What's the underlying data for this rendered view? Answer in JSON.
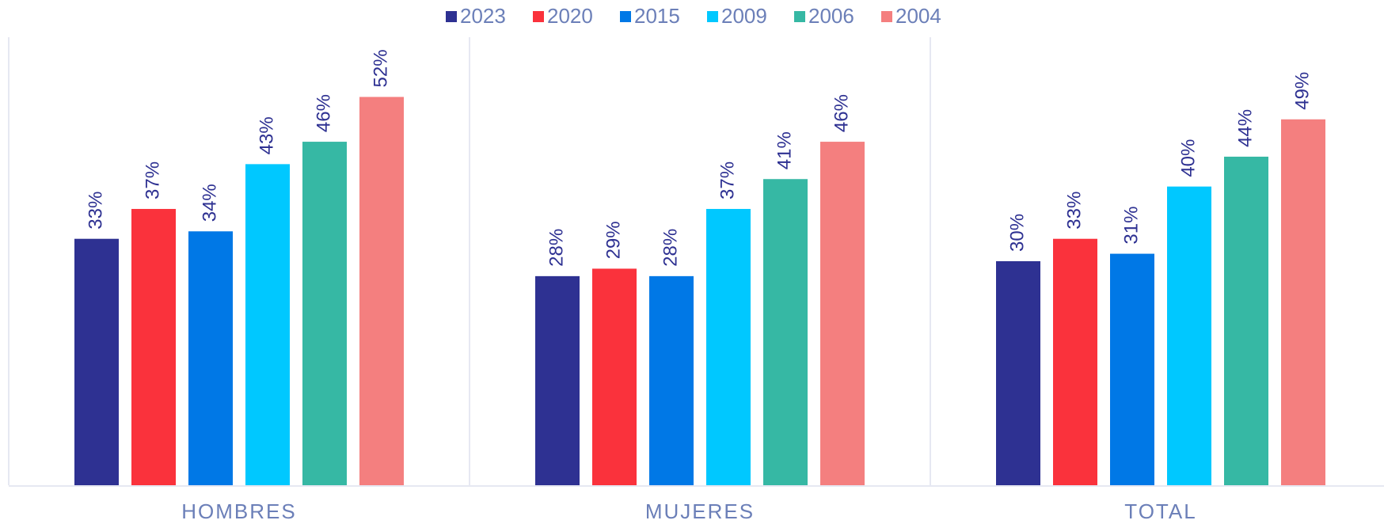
{
  "chart_data": {
    "type": "bar",
    "categories": [
      "HOMBRES",
      "MUJERES",
      "TOTAL"
    ],
    "series": [
      {
        "name": "2023",
        "color": "#2e3192",
        "values": [
          33,
          28,
          30
        ],
        "value_labels": [
          "33%",
          "28%",
          "30%"
        ]
      },
      {
        "name": "2020",
        "color": "#fa323c",
        "values": [
          37,
          29,
          33
        ],
        "value_labels": [
          "37%",
          "29%",
          "33%"
        ]
      },
      {
        "name": "2015",
        "color": "#0078e6",
        "values": [
          34,
          28,
          31
        ],
        "value_labels": [
          "34%",
          "28%",
          "31%"
        ]
      },
      {
        "name": "2009",
        "color": "#00c8ff",
        "values": [
          43,
          37,
          40
        ],
        "value_labels": [
          "43%",
          "37%",
          "40%"
        ]
      },
      {
        "name": "2006",
        "color": "#36b8a4",
        "values": [
          46,
          41,
          44
        ],
        "value_labels": [
          "46%",
          "41%",
          "44%"
        ]
      },
      {
        "name": "2004",
        "color": "#f47f7f",
        "values": [
          52,
          46,
          49
        ],
        "value_labels": [
          "52%",
          "46%",
          "49%"
        ]
      }
    ],
    "ylim": [
      0,
      60
    ],
    "legend": "top"
  }
}
